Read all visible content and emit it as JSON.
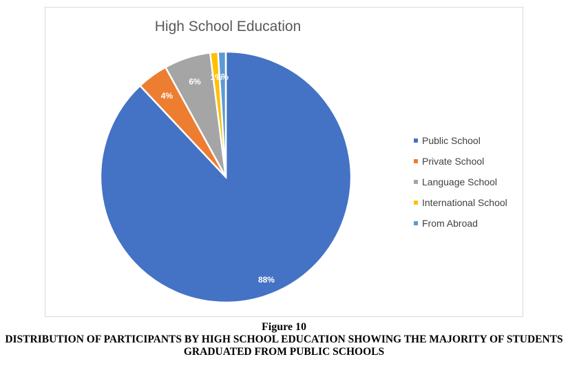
{
  "chart_data": {
    "type": "pie",
    "title": "High School Education",
    "categories": [
      "Public School",
      "Private School",
      "Language School",
      "International School",
      "From Abroad"
    ],
    "values": [
      88,
      4,
      6,
      1,
      1
    ],
    "data_labels": [
      "88%",
      "4%",
      "6%",
      "1%",
      "1%"
    ],
    "colors": [
      "#4472c4",
      "#ed7d31",
      "#a5a5a5",
      "#ffc000",
      "#5b9bd5"
    ],
    "legend_position": "right"
  },
  "caption": {
    "figure": "Figure 10",
    "text": "DISTRIBUTION OF PARTICIPANTS BY HIGH SCHOOL EDUCATION SHOWING THE MAJORITY OF STUDENTS GRADUATED FROM PUBLIC SCHOOLS"
  }
}
